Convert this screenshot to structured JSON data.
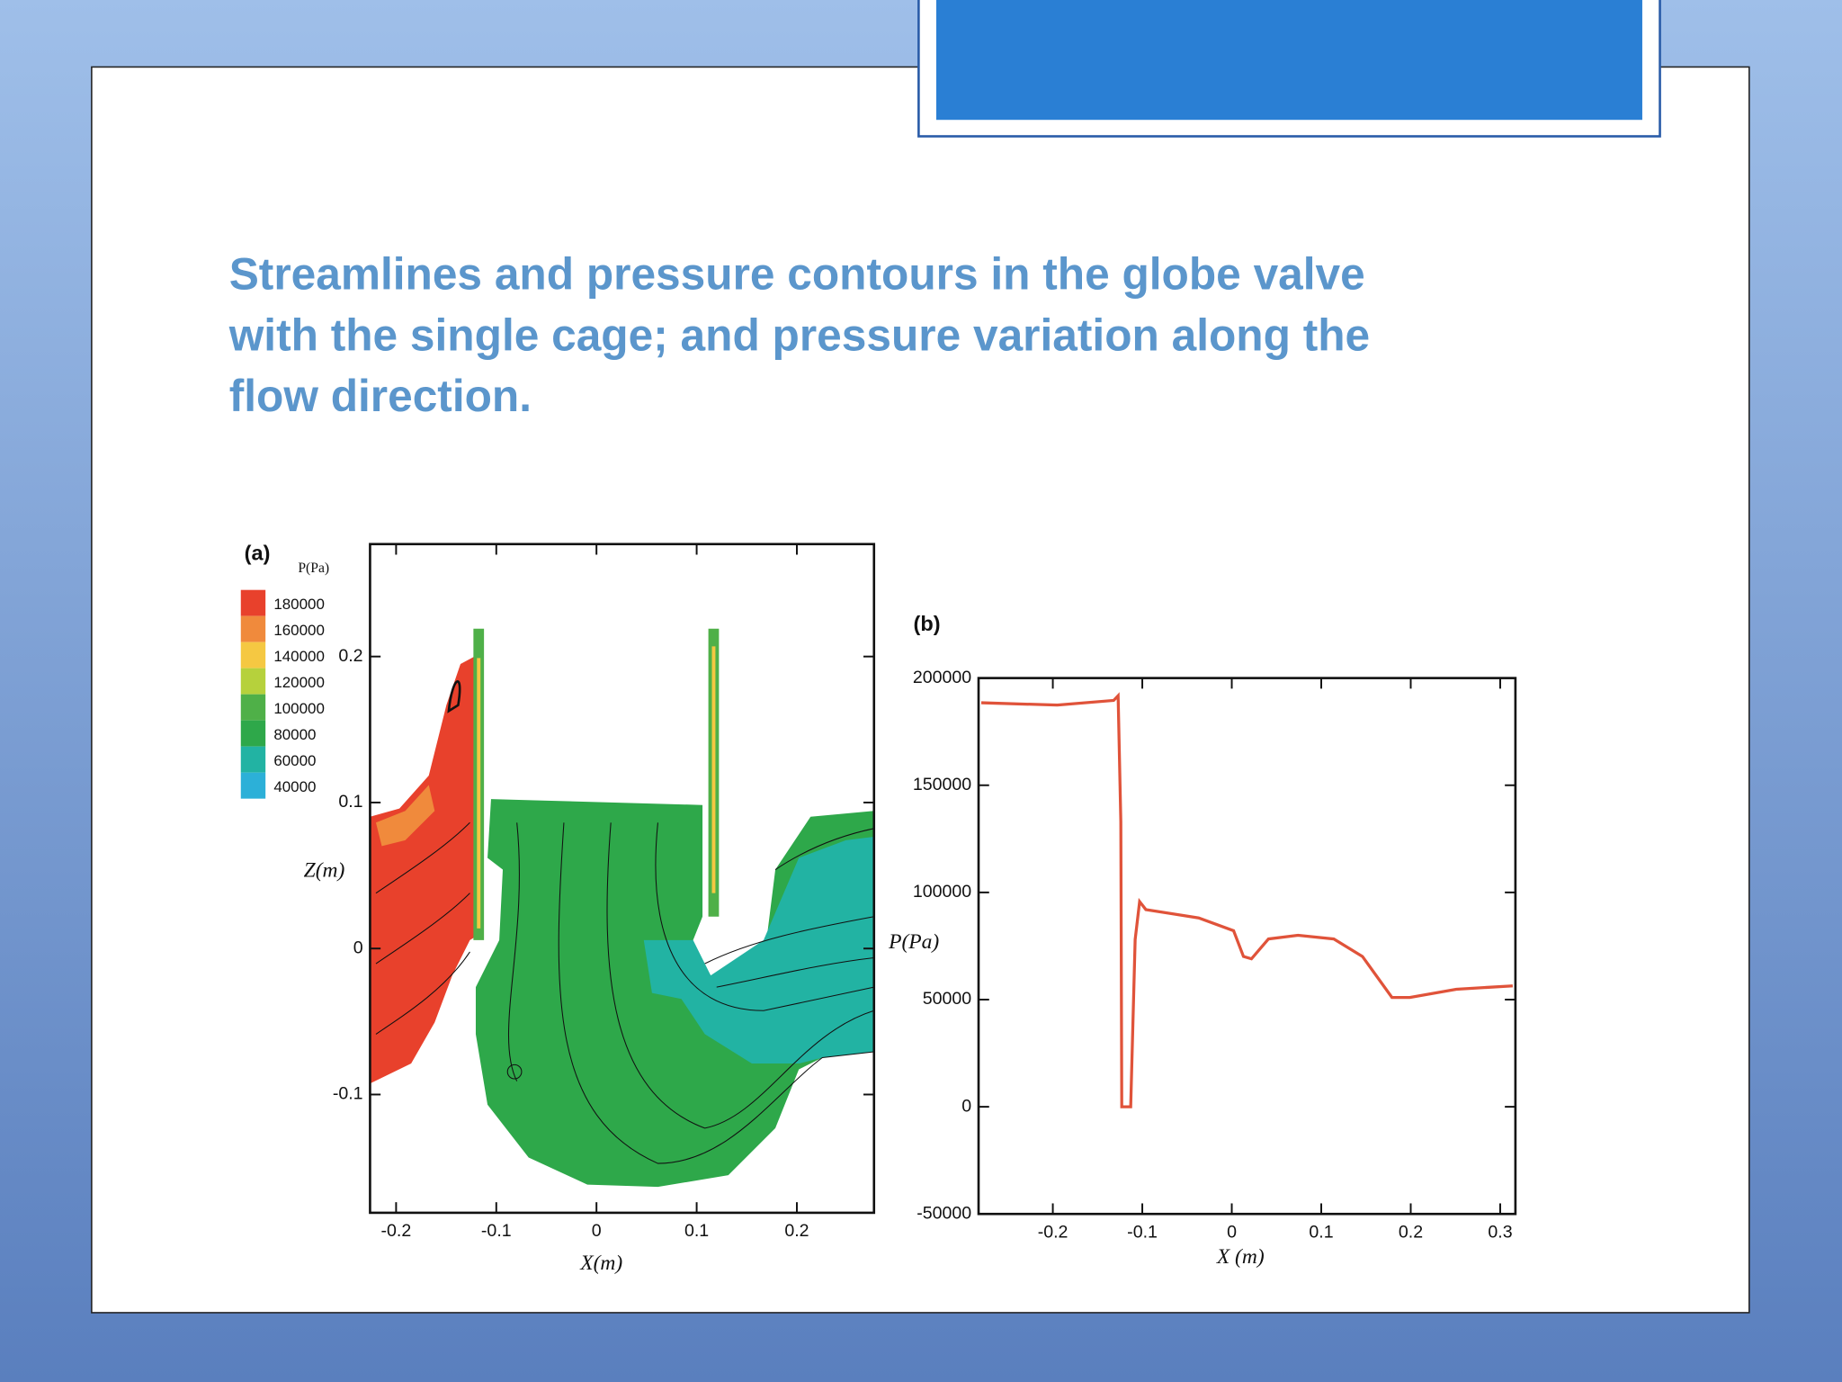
{
  "slide": {
    "title_lines": [
      "Streamlines and pressure contours in the globe valve",
      "with the single cage; and pressure variation along the",
      "flow direction."
    ]
  },
  "chart_data": [
    {
      "type": "contour",
      "label": "(a)",
      "legend_title": "P(Pa)",
      "levels": [
        180000,
        160000,
        140000,
        120000,
        100000,
        80000,
        60000,
        40000
      ],
      "level_colors": [
        "#e8412c",
        "#f08a3c",
        "#f5c842",
        "#b6d13c",
        "#4fb048",
        "#2ea84a",
        "#22b3a3",
        "#2cb0d8"
      ],
      "xlabel": "X(m)",
      "ylabel": "Z(m)",
      "xlim": [
        -0.226,
        0.277
      ],
      "ylim": [
        -0.181,
        0.277
      ],
      "xticks": [
        -0.2,
        -0.1,
        0,
        0.1,
        0.2
      ],
      "yticks": [
        -0.1,
        0,
        0.1,
        0.2
      ]
    },
    {
      "type": "line",
      "label": "(b)",
      "xlabel": "X (m)",
      "ylabel": "P(Pa)",
      "color": "#e0533a",
      "x": [
        -0.28,
        -0.195,
        -0.132,
        -0.127,
        -0.124,
        -0.123,
        -0.113,
        -0.108,
        -0.103,
        -0.096,
        -0.037,
        0.002,
        0.013,
        0.022,
        0.041,
        0.074,
        0.114,
        0.146,
        0.179,
        0.199,
        0.251,
        0.314
      ],
      "values": [
        188500,
        187400,
        189600,
        191800,
        132900,
        0,
        0,
        78000,
        95700,
        92000,
        88100,
        82100,
        70100,
        69000,
        78300,
        80000,
        78300,
        70100,
        51000,
        51000,
        54800,
        56400
      ],
      "xlim": [
        -0.283,
        0.317
      ],
      "ylim": [
        -50000,
        200000
      ],
      "xticks": [
        -0.2,
        -0.1,
        0,
        0.1,
        0.2,
        0.3
      ],
      "yticks": [
        -50000,
        0,
        50000,
        100000,
        150000,
        200000
      ]
    }
  ]
}
